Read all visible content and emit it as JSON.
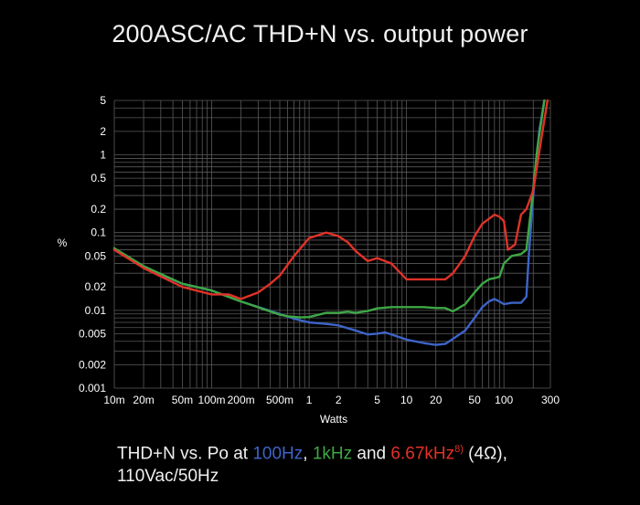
{
  "chart_data": {
    "type": "line",
    "title": "200ASC/AC THD+N vs. output power",
    "xlabel": "Watts",
    "ylabel": "%",
    "x_scale": "log",
    "y_scale": "log",
    "xlim": [
      0.01,
      300
    ],
    "ylim": [
      0.001,
      5
    ],
    "grid": true,
    "x_ticks": [
      {
        "value": 0.01,
        "label": "10m"
      },
      {
        "value": 0.02,
        "label": "20m"
      },
      {
        "value": 0.05,
        "label": "50m"
      },
      {
        "value": 0.1,
        "label": "100m"
      },
      {
        "value": 0.2,
        "label": "200m"
      },
      {
        "value": 0.5,
        "label": "500m"
      },
      {
        "value": 1,
        "label": "1"
      },
      {
        "value": 2,
        "label": "2"
      },
      {
        "value": 5,
        "label": "5"
      },
      {
        "value": 10,
        "label": "10"
      },
      {
        "value": 20,
        "label": "20"
      },
      {
        "value": 50,
        "label": "50"
      },
      {
        "value": 100,
        "label": "100"
      },
      {
        "value": 300,
        "label": "300"
      }
    ],
    "y_ticks": [
      {
        "value": 5,
        "label": "5"
      },
      {
        "value": 2,
        "label": "2"
      },
      {
        "value": 1,
        "label": "1"
      },
      {
        "value": 0.5,
        "label": "0.5"
      },
      {
        "value": 0.2,
        "label": "0.2"
      },
      {
        "value": 0.1,
        "label": "0.1"
      },
      {
        "value": 0.05,
        "label": "0.05"
      },
      {
        "value": 0.02,
        "label": "0.02"
      },
      {
        "value": 0.01,
        "label": "0.01"
      },
      {
        "value": 0.005,
        "label": "0.005"
      },
      {
        "value": 0.002,
        "label": "0.002"
      },
      {
        "value": 0.001,
        "label": "0.001"
      }
    ],
    "series": [
      {
        "name": "100Hz",
        "color": "#3d64c8",
        "x": [
          0.01,
          0.02,
          0.05,
          0.1,
          0.2,
          0.5,
          0.7,
          1,
          1.5,
          2,
          3,
          4,
          5,
          6,
          7,
          10,
          15,
          20,
          25,
          30,
          40,
          50,
          60,
          70,
          80,
          90,
          100,
          120,
          150,
          170,
          180,
          200,
          230,
          260
        ],
        "y": [
          0.06,
          0.036,
          0.022,
          0.018,
          0.013,
          0.009,
          0.0078,
          0.007,
          0.0067,
          0.0064,
          0.0055,
          0.0049,
          0.005,
          0.0052,
          0.0049,
          0.0042,
          0.0038,
          0.0036,
          0.0037,
          0.0043,
          0.0055,
          0.008,
          0.011,
          0.013,
          0.014,
          0.013,
          0.012,
          0.0125,
          0.0125,
          0.015,
          0.05,
          0.3,
          2.0,
          5.0
        ]
      },
      {
        "name": "1kHz",
        "color": "#3ea845",
        "x": [
          0.01,
          0.02,
          0.05,
          0.1,
          0.2,
          0.5,
          0.6,
          0.8,
          1,
          1.5,
          2,
          2.5,
          3,
          4,
          5,
          7,
          10,
          15,
          20,
          25,
          30,
          40,
          50,
          60,
          70,
          80,
          90,
          100,
          120,
          150,
          170,
          190,
          220,
          260
        ],
        "y": [
          0.063,
          0.037,
          0.022,
          0.018,
          0.013,
          0.0088,
          0.0084,
          0.0081,
          0.0082,
          0.0093,
          0.0093,
          0.0096,
          0.0093,
          0.0098,
          0.0106,
          0.011,
          0.011,
          0.011,
          0.0107,
          0.0107,
          0.0097,
          0.012,
          0.017,
          0.022,
          0.025,
          0.026,
          0.027,
          0.04,
          0.05,
          0.053,
          0.06,
          0.2,
          1.2,
          5.0
        ]
      },
      {
        "name": "6.67kHz",
        "color": "#e03228",
        "x": [
          0.01,
          0.02,
          0.05,
          0.1,
          0.15,
          0.2,
          0.3,
          0.4,
          0.5,
          0.7,
          1,
          1.5,
          2,
          2.5,
          3,
          4,
          5,
          7,
          10,
          15,
          20,
          25,
          30,
          40,
          50,
          60,
          70,
          80,
          90,
          100,
          110,
          130,
          150,
          170,
          200,
          240,
          280
        ],
        "y": [
          0.06,
          0.035,
          0.02,
          0.016,
          0.016,
          0.014,
          0.017,
          0.022,
          0.028,
          0.05,
          0.085,
          0.1,
          0.09,
          0.075,
          0.058,
          0.043,
          0.047,
          0.04,
          0.025,
          0.025,
          0.025,
          0.025,
          0.03,
          0.05,
          0.09,
          0.13,
          0.15,
          0.17,
          0.16,
          0.14,
          0.06,
          0.07,
          0.17,
          0.2,
          0.35,
          1.5,
          5.0
        ]
      }
    ]
  },
  "caption": {
    "prefix": "THD+N vs. Po at ",
    "s1": "100Hz",
    "sep1": ", ",
    "s2": "1kHz",
    "sep2": " and ",
    "s3": "6.67kHz",
    "s3_sup": "8)",
    "suffix": " (4Ω),",
    "line2": "110Vac/50Hz"
  }
}
